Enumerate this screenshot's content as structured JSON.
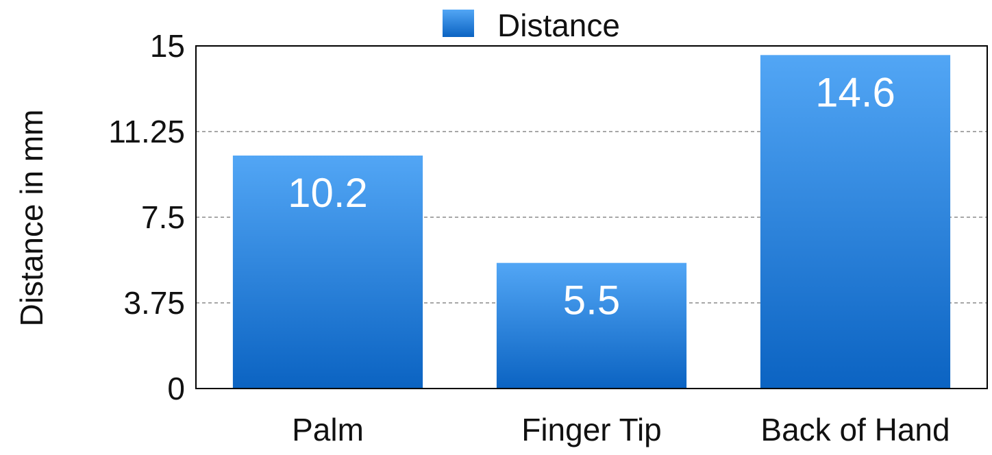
{
  "chart_data": {
    "type": "bar",
    "categories": [
      "Palm",
      "Finger Tip",
      "Back of Hand"
    ],
    "series": [
      {
        "name": "Distance",
        "values": [
          10.2,
          5.5,
          14.6
        ],
        "color": "#1e7fd8"
      }
    ],
    "data_labels": [
      "10.2",
      "5.5",
      "14.6"
    ],
    "title": "",
    "xlabel": "",
    "ylabel": "Distance in mm",
    "ylim": [
      0,
      15
    ],
    "yticks": [
      0,
      3.75,
      7.5,
      11.25,
      15
    ],
    "ytick_labels": [
      "0",
      "3.75",
      "7.5",
      "11.25",
      "15"
    ],
    "grid": "horizontal dashed",
    "legend": "top-center",
    "colors": {
      "bar_top": "#52a6f5",
      "bar_bottom": "#0b63c2",
      "grid": "#8a8a8a",
      "axis": "#000000"
    }
  }
}
